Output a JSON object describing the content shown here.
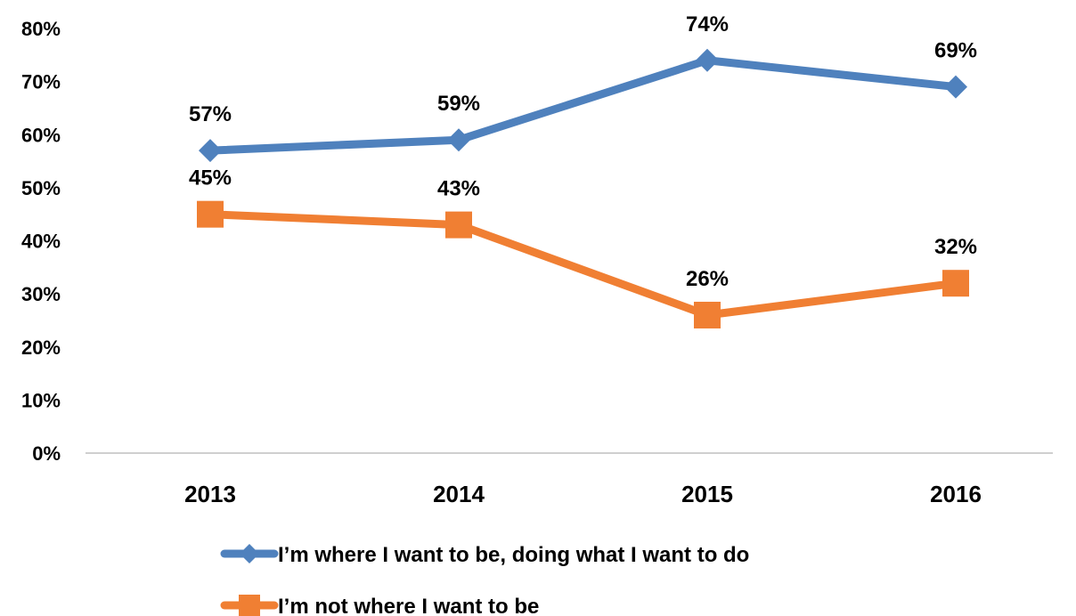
{
  "chart_data": {
    "type": "line",
    "categories": [
      "2013",
      "2014",
      "2015",
      "2016"
    ],
    "ylim": [
      0,
      80
    ],
    "y_ticks": [
      "0%",
      "10%",
      "20%",
      "30%",
      "40%",
      "50%",
      "60%",
      "70%",
      "80%"
    ],
    "grid": false,
    "legend_position": "bottom",
    "series": [
      {
        "name": "I’m where I want to be, doing what I want to do",
        "values": [
          57,
          59,
          74,
          69
        ],
        "labels": [
          "57%",
          "59%",
          "74%",
          "69%"
        ],
        "color": "#4f81bd",
        "marker": "diamond"
      },
      {
        "name": "I’m not where I want to be",
        "values": [
          45,
          43,
          26,
          32
        ],
        "labels": [
          "45%",
          "43%",
          "26%",
          "32%"
        ],
        "color": "#f07f33",
        "marker": "square"
      }
    ]
  }
}
